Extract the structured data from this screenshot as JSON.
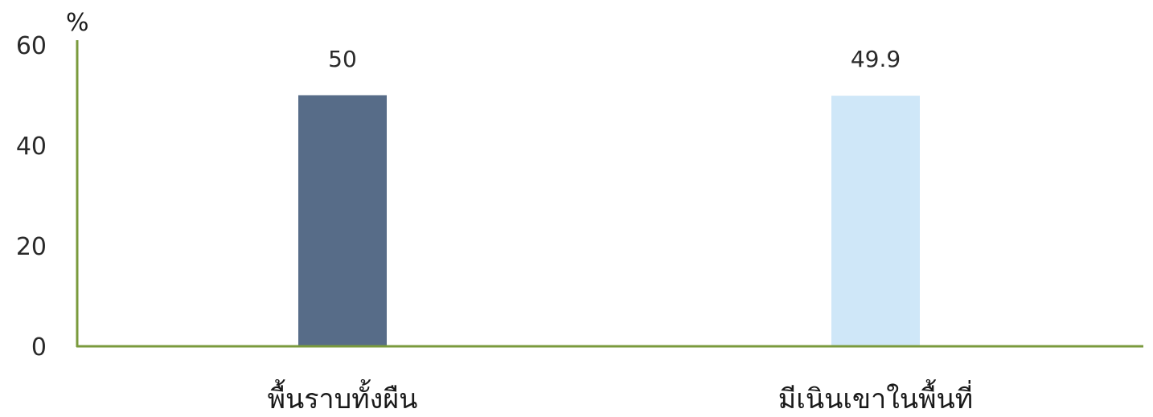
{
  "chart_data": {
    "type": "bar",
    "ylabel": "%",
    "ylim": [
      0,
      60
    ],
    "yticks": [
      0,
      20,
      40,
      60
    ],
    "categories": [
      "พื้นราบทั้งผืน",
      "มีเนินเขาในพื้นที่"
    ],
    "values": [
      50,
      49.9
    ],
    "value_labels": [
      "50",
      "49.9"
    ],
    "bar_colors": [
      "#576c88",
      "#cfe7f8"
    ],
    "axis_color": "#7a9a3c",
    "grid": false
  }
}
